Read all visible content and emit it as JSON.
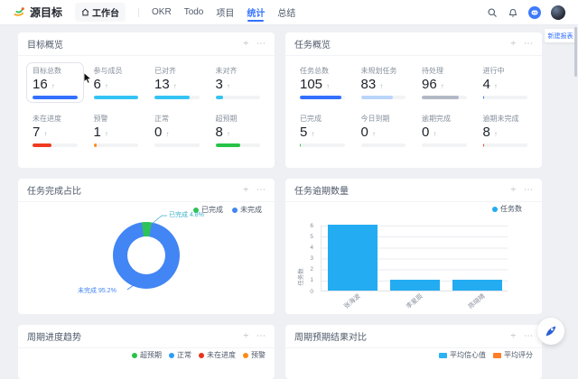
{
  "glyphs": {
    "trend_arrow": "↑",
    "resize": "÷",
    "more": "⋯",
    "nav_divider": "|"
  },
  "colors": {
    "accent": "#3370ff",
    "bar_blue": "#23acf1",
    "pie_blue": "#4285f4",
    "pie_green": "#2dc25a",
    "page_bg": "#eef0f4"
  },
  "header": {
    "logo": "源目标",
    "nav": [
      {
        "label": "工作台"
      },
      {
        "label": "OKR"
      },
      {
        "label": "Todo"
      },
      {
        "label": "项目"
      },
      {
        "label": "统计"
      },
      {
        "label": "总结"
      }
    ],
    "active_tab": "统计"
  },
  "new_report_tab": {
    "label": "新建报表"
  },
  "goal_overview": {
    "title": "目标概览",
    "stats": [
      {
        "label": "目标总数",
        "value": "16",
        "pct": 100,
        "color": "#3370ff",
        "highlight": true
      },
      {
        "label": "参与成员",
        "value": "6",
        "pct": 100,
        "color": "#34c3f5"
      },
      {
        "label": "已对齐",
        "value": "13",
        "pct": 78,
        "color": "#34c3f5"
      },
      {
        "label": "未对齐",
        "value": "3",
        "pct": 18,
        "color": "#34c3f5"
      },
      {
        "label": "未在进度",
        "value": "7",
        "pct": 42,
        "color": "#f03b1f"
      },
      {
        "label": "预警",
        "value": "1",
        "pct": 7,
        "color": "#ff8a16"
      },
      {
        "label": "正常",
        "value": "0",
        "pct": 0,
        "color": "#2d9ef5"
      },
      {
        "label": "超预期",
        "value": "8",
        "pct": 55,
        "color": "#27c346"
      }
    ]
  },
  "task_overview": {
    "title": "任务概览",
    "stats": [
      {
        "label": "任务总数",
        "value": "105",
        "pct": 93,
        "color": "#3370ff"
      },
      {
        "label": "未规划任务",
        "value": "83",
        "pct": 72,
        "color": "#bad5fb"
      },
      {
        "label": "待处理",
        "value": "96",
        "pct": 83,
        "color": "#b3bac6"
      },
      {
        "label": "进行中",
        "value": "4",
        "pct": 4,
        "color": "#3370ff"
      },
      {
        "label": "已完成",
        "value": "5",
        "pct": 3,
        "color": "#27c346"
      },
      {
        "label": "今日到期",
        "value": "0",
        "pct": 0,
        "color": "#b3bac6"
      },
      {
        "label": "逾期完成",
        "value": "0",
        "pct": 0,
        "color": "#b3bac6"
      },
      {
        "label": "逾期未完成",
        "value": "8",
        "pct": 3,
        "color": "#f03b1f"
      }
    ]
  },
  "completion_card": {
    "title": "任务完成占比",
    "legend": [
      {
        "label": "已完成",
        "color": "#2dc25a"
      },
      {
        "label": "未完成",
        "color": "#4285f4"
      }
    ],
    "callouts": [
      {
        "text": "已完成 4.8%",
        "color": "#3bb0c9"
      },
      {
        "text": "未完成 95.2%",
        "color": "#4285f4"
      }
    ]
  },
  "overdue_card": {
    "title": "任务逾期数量",
    "legend": [
      {
        "label": "任务数",
        "color": "#23acf1"
      }
    ]
  },
  "trend_card": {
    "title": "周期进度趋势",
    "legend": [
      {
        "label": "超预期",
        "color": "#27c346"
      },
      {
        "label": "正常",
        "color": "#2d9ef5"
      },
      {
        "label": "未在进度",
        "color": "#e8331c"
      },
      {
        "label": "预警",
        "color": "#ff8a16"
      }
    ]
  },
  "compare_card": {
    "title": "周期预期结果对比",
    "legend": [
      {
        "label": "平均信心值",
        "color": "#29b3f2"
      },
      {
        "label": "平均评分",
        "color": "#ff7d26"
      }
    ]
  },
  "chart_data": [
    {
      "type": "pie",
      "donut": true,
      "title": "任务完成占比",
      "labels": [
        "已完成",
        "未完成"
      ],
      "values": [
        4.8,
        95.2
      ],
      "unit": "%",
      "colors": [
        "#2dc25a",
        "#4285f4"
      ],
      "legend_position": "top-right"
    },
    {
      "type": "bar",
      "title": "任务逾期数量",
      "categories": [
        "张海波",
        "李星辰",
        "陈晓晴"
      ],
      "values": [
        6,
        1,
        1
      ],
      "ylabel": "任务数",
      "ylim": [
        0,
        6
      ],
      "yticks": [
        0,
        1,
        2,
        3,
        4,
        5,
        6
      ],
      "legend": [
        "任务数"
      ],
      "bar_color": "#23acf1",
      "grid": true,
      "legend_position": "top-right"
    }
  ]
}
